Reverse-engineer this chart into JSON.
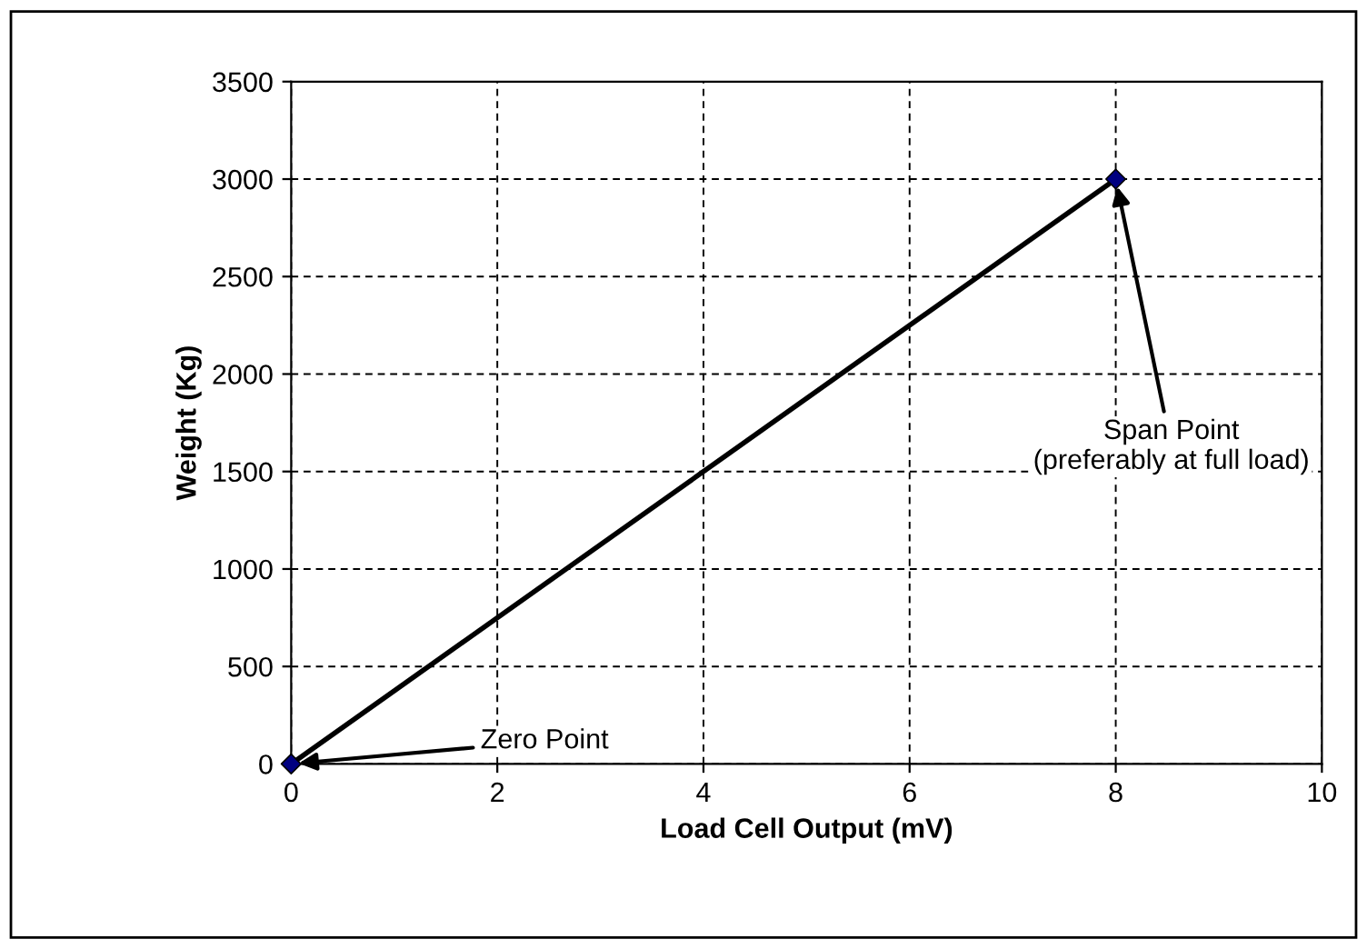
{
  "chart_data": {
    "type": "line",
    "xlabel": "Load Cell Output (mV)",
    "ylabel": "Weight (Kg)",
    "x": [
      0,
      8
    ],
    "series": [
      {
        "color": "#000000",
        "colors": [
          "#000080",
          "#000080"
        ],
        "values": [
          0,
          3000
        ]
      }
    ],
    "xlim": [
      0,
      10
    ],
    "xticks": [
      0,
      2,
      4,
      6,
      8,
      10
    ],
    "ylim": [
      0,
      3500
    ],
    "yticks": [
      0,
      500,
      1000,
      1500,
      2000,
      2500,
      3000,
      3500
    ],
    "grid": true,
    "legend": false,
    "marker": "diamond",
    "line_style": "solid",
    "annotations": [
      {
        "text": "Zero Point",
        "x": 0,
        "y": 0
      },
      {
        "text": "Span Point\n(preferably at full load)",
        "x": 8,
        "y": 3000
      }
    ]
  }
}
